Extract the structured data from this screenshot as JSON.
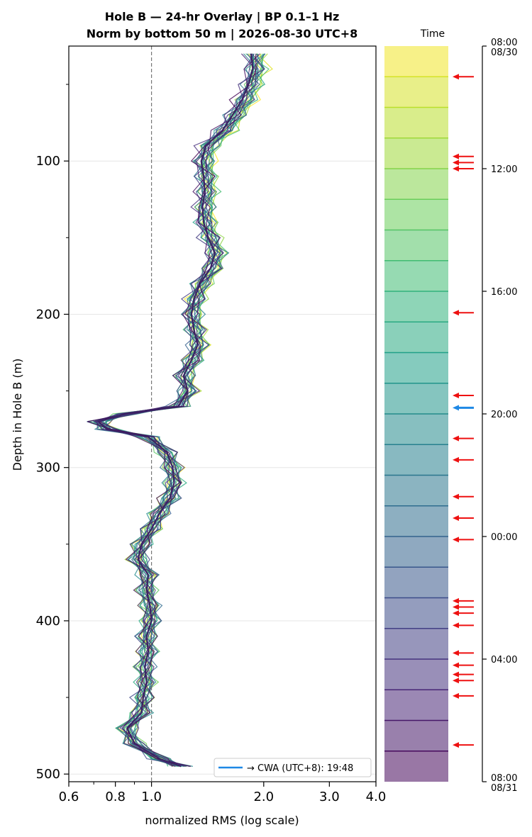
{
  "chart_data": {
    "type": "line",
    "title_line1": "Hole B — 24-hr Overlay  |  BP 0.1–1 Hz",
    "title_line2": "Norm by bottom 50 m  |  2026-08-30 UTC+8",
    "xlabel": "normalized RMS  (log scale)",
    "ylabel": "Depth in Hole B (m)",
    "xscale": "log",
    "xlim": [
      0.6,
      4.0
    ],
    "xticks": [
      0.6,
      0.8,
      1.0,
      2.0,
      3.0,
      4.0
    ],
    "xtick_labels": [
      "0.6",
      "0.8",
      "1.0",
      "2.0",
      "3.0",
      "4.0"
    ],
    "ylim": [
      505,
      25
    ],
    "yticks": [
      100,
      200,
      300,
      400,
      500
    ],
    "ytick_labels": [
      "100",
      "200",
      "300",
      "400",
      "500"
    ],
    "reference_line_x": 1.0,
    "grid": "horizontal",
    "legend": {
      "label": "→ CWA (UTC+8): 19:48",
      "color": "#1e88e5",
      "placement": "lower-right"
    },
    "profile": {
      "depth": [
        30,
        40,
        50,
        60,
        70,
        80,
        90,
        100,
        110,
        120,
        130,
        140,
        150,
        160,
        170,
        180,
        190,
        200,
        210,
        220,
        230,
        240,
        250,
        260,
        265,
        270,
        275,
        280,
        290,
        300,
        310,
        320,
        330,
        340,
        350,
        360,
        370,
        380,
        390,
        400,
        410,
        420,
        430,
        440,
        450,
        460,
        470,
        480,
        490,
        495
      ],
      "rms": [
        1.85,
        1.87,
        1.82,
        1.75,
        1.65,
        1.55,
        1.4,
        1.36,
        1.38,
        1.39,
        1.37,
        1.38,
        1.42,
        1.48,
        1.44,
        1.35,
        1.3,
        1.28,
        1.3,
        1.33,
        1.28,
        1.22,
        1.25,
        1.18,
        0.85,
        0.72,
        0.76,
        0.98,
        1.1,
        1.14,
        1.15,
        1.12,
        1.05,
        1.0,
        0.94,
        0.92,
        0.98,
        0.97,
        0.99,
        1.0,
        0.97,
        0.98,
        0.96,
        0.97,
        0.95,
        0.94,
        0.86,
        0.9,
        1.05,
        1.2
      ]
    },
    "colorbar": {
      "label": "Time",
      "tick_labels": [
        "08:00\n08/30",
        "12:00",
        "16:00",
        "20:00",
        "00:00",
        "04:00",
        "08:00\n08/31"
      ],
      "tick_hours": [
        0,
        4,
        8,
        12,
        16,
        20,
        24
      ],
      "segment_hours": 24,
      "colormap": "viridis",
      "event_marker_hours": [
        1.0,
        3.6,
        3.8,
        4.0,
        8.7,
        11.4,
        12.8,
        13.5,
        14.7,
        15.4,
        16.1,
        18.1,
        18.3,
        18.5,
        18.9,
        19.8,
        20.2,
        20.5,
        20.7,
        21.2,
        22.8
      ],
      "event_marker_color": "#ee1111",
      "cwa_marker_hour": 11.8,
      "cwa_marker_color": "#1e88e5"
    }
  }
}
